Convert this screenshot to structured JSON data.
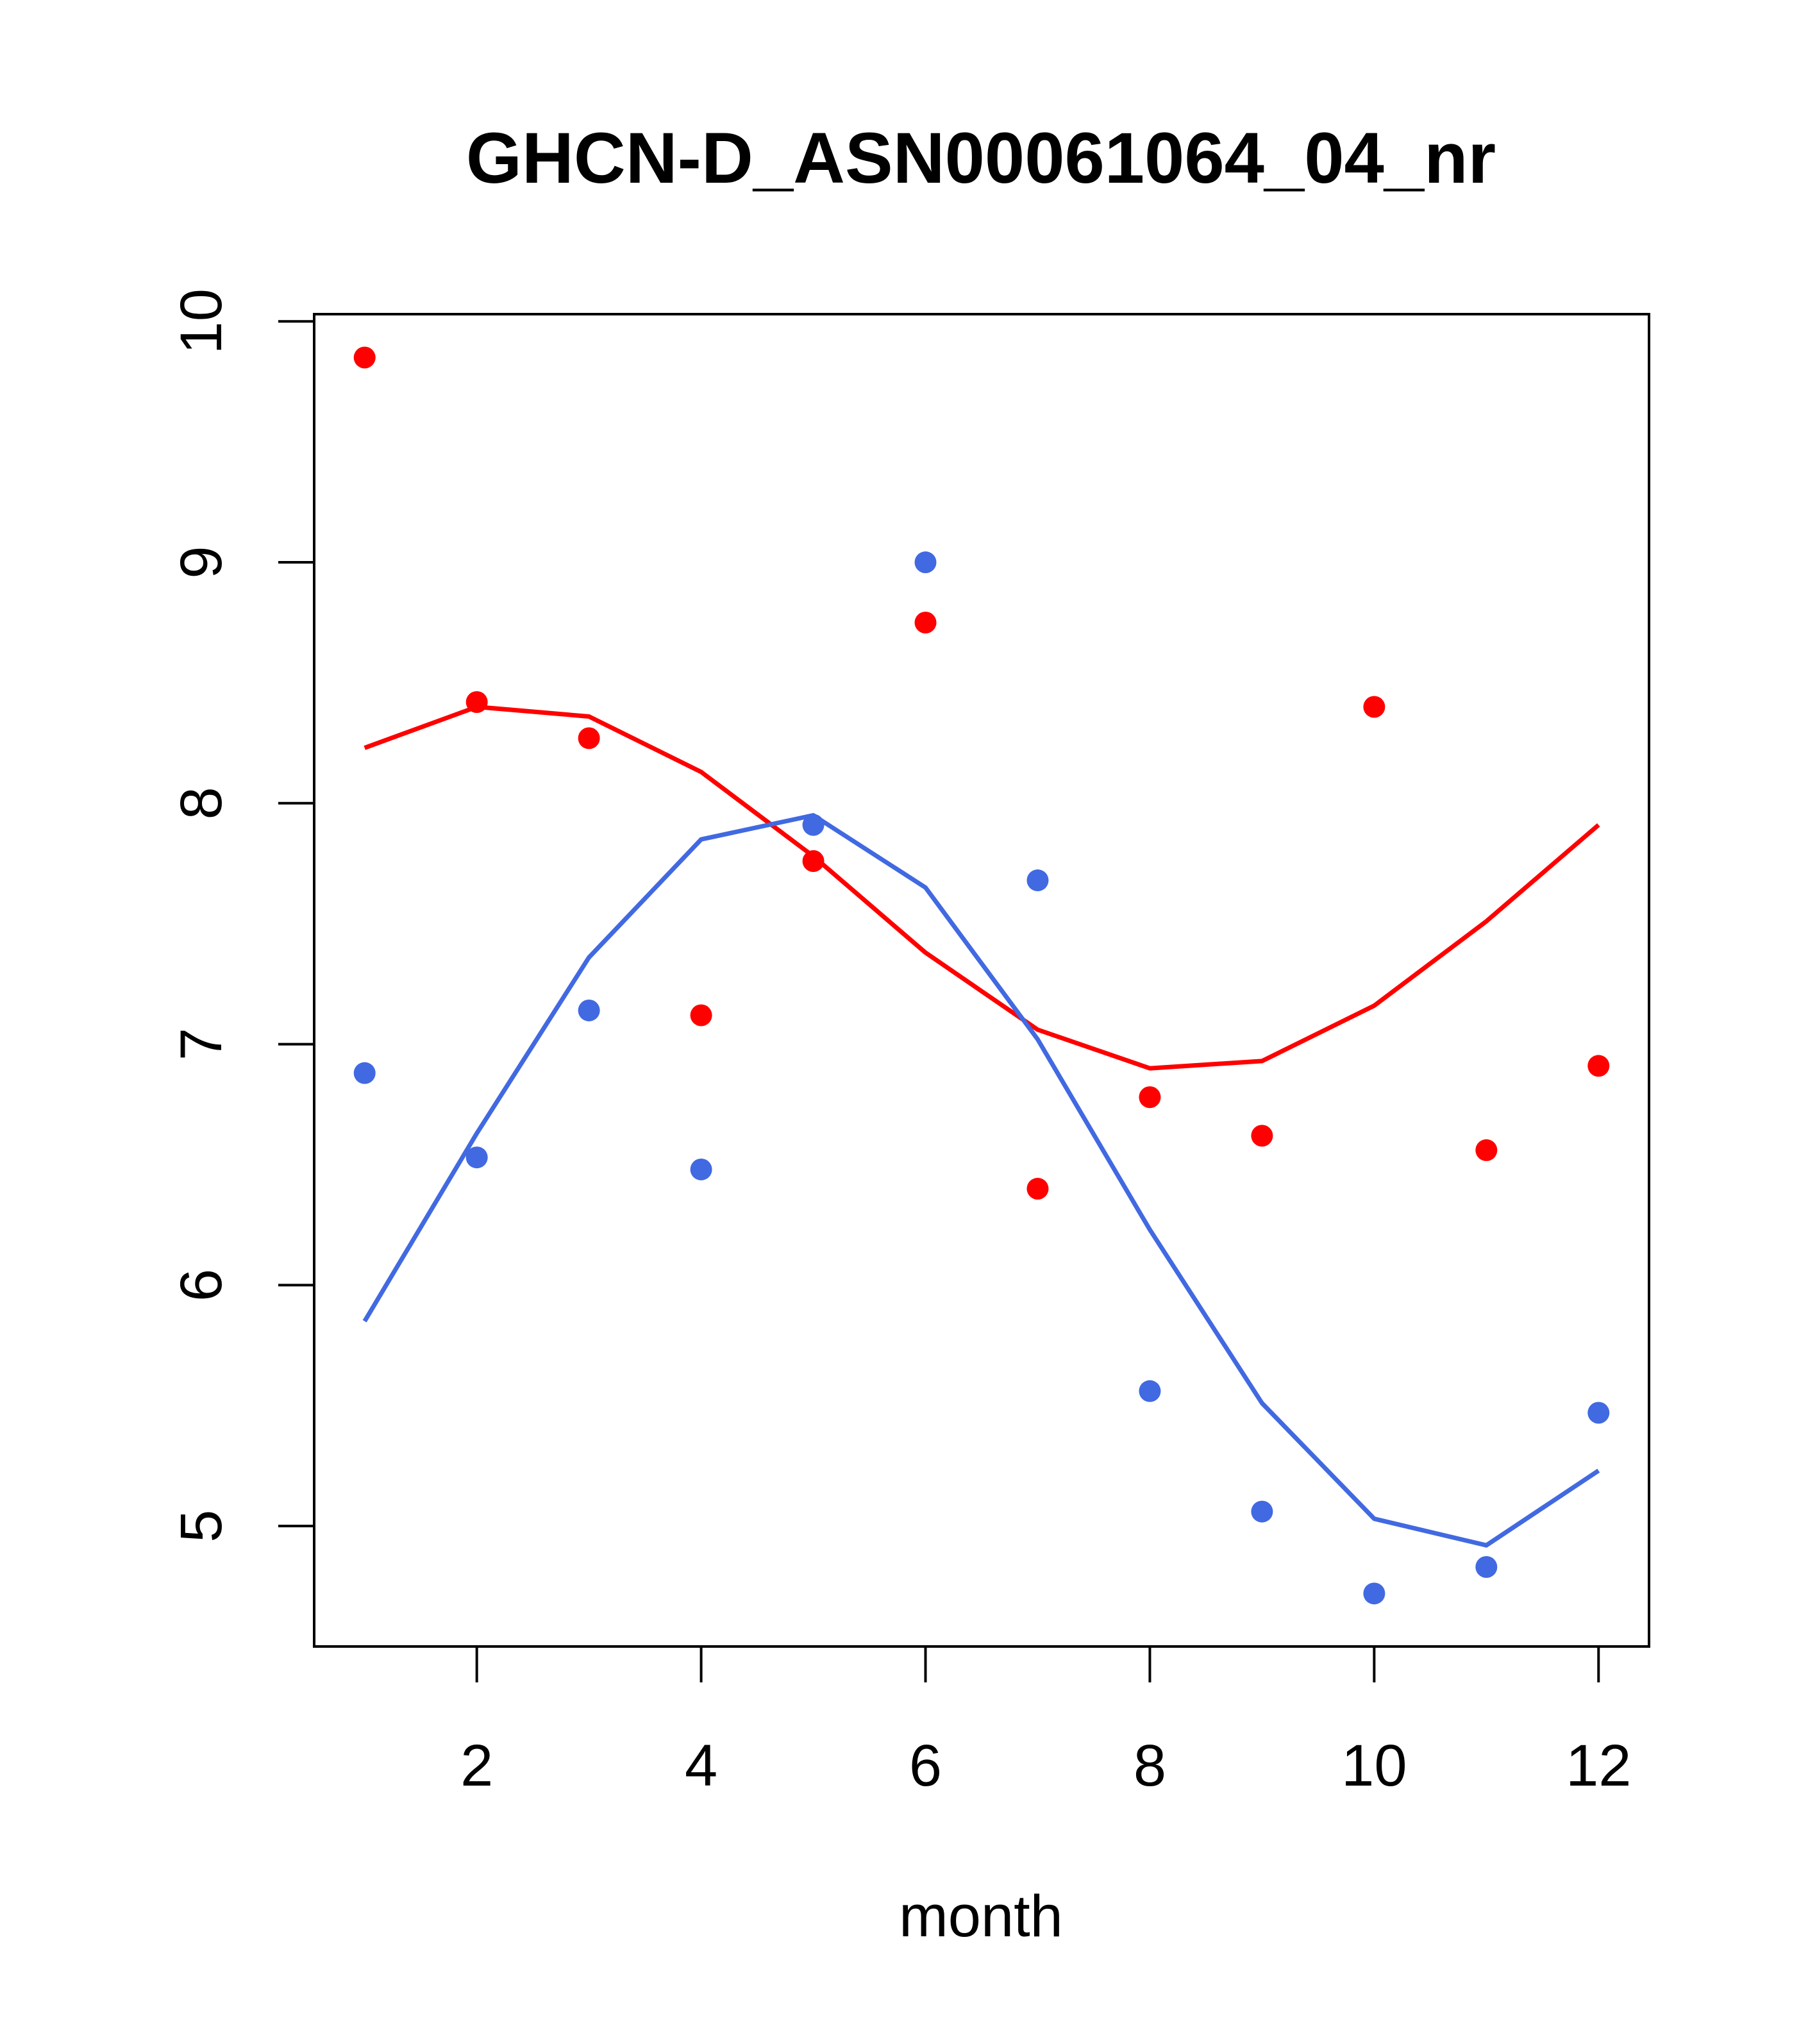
{
  "chart_data": {
    "type": "scatter",
    "title": "GHCN-D_ASN00061064_04_nr",
    "xlabel": "month",
    "ylabel": "",
    "xlim": [
      0.55,
      12.45
    ],
    "ylim": [
      4.5,
      10.03
    ],
    "xticks": [
      2,
      4,
      6,
      8,
      10,
      12
    ],
    "yticks": [
      5,
      6,
      7,
      8,
      9,
      10
    ],
    "grid": false,
    "legend": "none",
    "series": [
      {
        "color": "#ff0000",
        "x": [
          1,
          2,
          3,
          4,
          5,
          6,
          7,
          8,
          9,
          10,
          11,
          12
        ],
        "points": [
          9.85,
          8.42,
          8.27,
          7.12,
          7.76,
          8.75,
          6.4,
          6.78,
          6.62,
          8.4,
          6.56,
          6.91
        ],
        "curve": [
          8.23,
          8.4,
          8.36,
          8.13,
          7.78,
          7.38,
          7.06,
          6.9,
          6.93,
          7.16,
          7.51,
          7.91
        ]
      },
      {
        "color": "#4169e1",
        "x": [
          1,
          2,
          3,
          4,
          5,
          6,
          7,
          8,
          9,
          10,
          11,
          12
        ],
        "points": [
          6.88,
          6.53,
          7.14,
          6.48,
          7.91,
          9.0,
          7.68,
          5.56,
          5.06,
          4.72,
          4.83,
          5.47
        ],
        "curve": [
          5.85,
          6.63,
          7.36,
          7.85,
          7.95,
          7.65,
          7.02,
          6.23,
          5.51,
          5.03,
          4.92,
          5.23
        ]
      }
    ]
  }
}
